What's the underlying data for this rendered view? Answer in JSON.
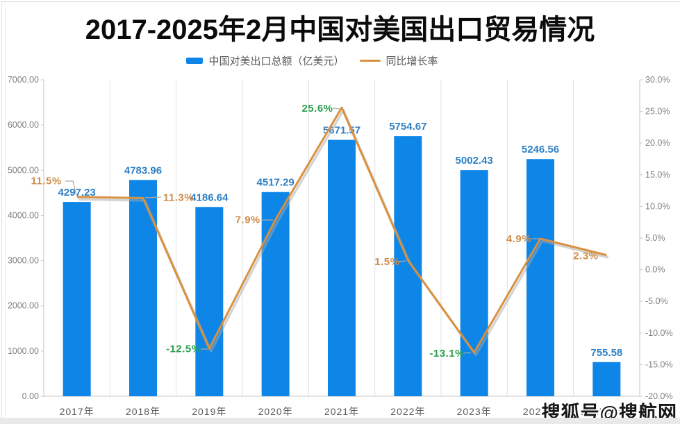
{
  "page": {
    "title": "2017-2025年2月中国对美国出口贸易情况",
    "watermark": "搜狐号@搜航网"
  },
  "legend": {
    "bar": {
      "label": "中国对美出口总额（亿美元）",
      "color": "#0d86e8"
    },
    "line": {
      "label": "同比增长率",
      "color": "#d9913f"
    }
  },
  "chart_data": {
    "type": "bar",
    "subtype": "bar+line dual axis",
    "title": "2017-2025年2月中国对美国出口贸易情况",
    "categories": [
      "2017年",
      "2018年",
      "2019年",
      "2020年",
      "2021年",
      "2022年",
      "2023年",
      "2024年",
      "2025年2月"
    ],
    "series": [
      {
        "name": "中国对美出口总额（亿美元）",
        "type": "bar",
        "axis": "left",
        "color": "#0d86e8",
        "label_color": "#2e80c4",
        "values": [
          4297.23,
          4783.96,
          4186.64,
          4517.29,
          5671.57,
          5754.67,
          5002.43,
          5246.56,
          755.58
        ]
      },
      {
        "name": "同比增长率",
        "type": "line",
        "axis": "right",
        "color": "#d9913f",
        "values": [
          11.5,
          11.3,
          -12.5,
          7.9,
          25.6,
          1.5,
          -13.1,
          4.9,
          2.3
        ],
        "labels": [
          "11.5%",
          "11.3%",
          "-12.5%",
          "7.9%",
          "25.6%",
          "1.5%",
          "-13.1%",
          "4.9%",
          "2.3%"
        ],
        "label_colors": [
          "#cf8d4b",
          "#cf8d4b",
          "#2ba14d",
          "#cf8d4b",
          "#2ba14d",
          "#cf8d4b",
          "#2ba14d",
          "#cf8d4b",
          "#cf8d4b"
        ]
      }
    ],
    "left_axis": {
      "min": 0,
      "max": 7000,
      "step": 1000,
      "decimals": 2
    },
    "right_axis": {
      "min": -20,
      "max": 30,
      "step": 5,
      "decimals": 1,
      "suffix": "%"
    },
    "grid": "vertical",
    "legend_position": "top"
  }
}
